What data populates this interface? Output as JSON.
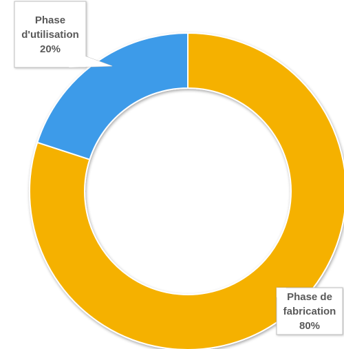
{
  "chart_data": {
    "type": "pie",
    "variant": "doughnut",
    "title": "",
    "legend": "none",
    "series": [
      {
        "label_lines": [
          "Phase de",
          "fabrication"
        ],
        "value": 80,
        "value_label": "80%",
        "color": "#F5B100"
      },
      {
        "label_lines": [
          "Phase",
          "d'utilisation"
        ],
        "value": 20,
        "value_label": "20%",
        "color": "#3D9BE9"
      }
    ]
  }
}
